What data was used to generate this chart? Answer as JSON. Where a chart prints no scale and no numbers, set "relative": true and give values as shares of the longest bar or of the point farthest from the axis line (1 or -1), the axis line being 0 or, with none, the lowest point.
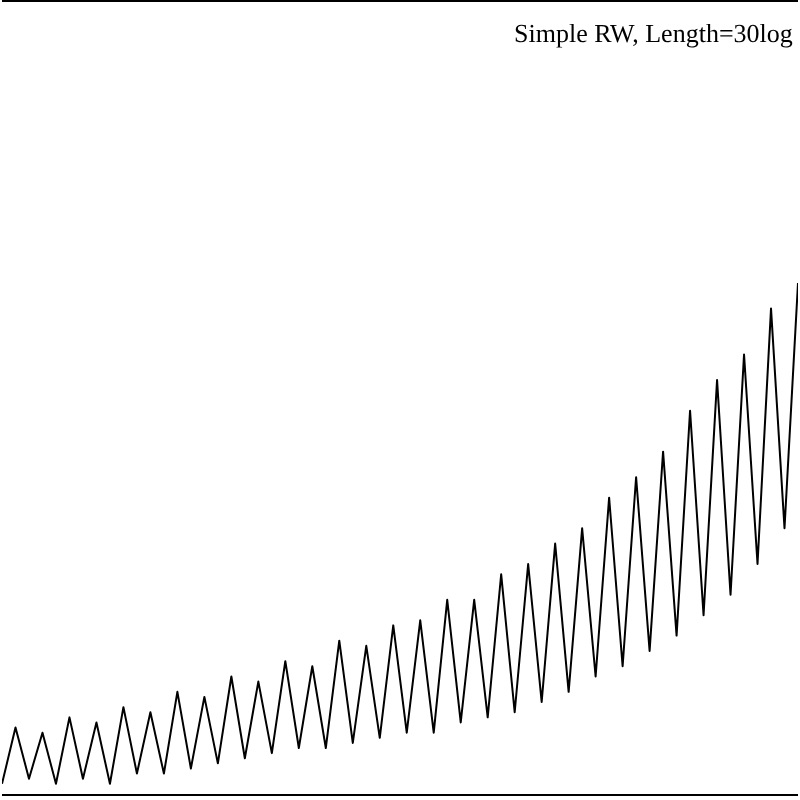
{
  "chart_data": {
    "type": "line",
    "relative": true,
    "annotations": [
      "Simple RW, Length=30log"
    ],
    "categories": [
      null,
      null,
      null,
      null,
      null,
      null,
      null,
      null,
      null,
      null,
      null,
      null,
      null,
      null,
      null,
      null,
      null,
      null,
      null,
      null,
      null,
      null,
      null,
      null,
      null,
      null,
      null,
      null,
      null,
      null,
      null,
      null,
      null,
      null,
      null,
      null,
      null,
      null,
      null,
      null,
      null,
      null,
      null,
      null,
      null,
      null,
      null,
      null,
      null,
      null,
      null,
      null,
      null,
      null,
      null,
      null,
      null,
      null,
      null,
      null
    ],
    "series": [
      {
        "color": "#000000",
        "values": [
          0.02,
          0.13,
          0.03,
          0.12,
          0.02,
          0.15,
          0.03,
          0.14,
          0.02,
          0.17,
          0.04,
          0.16,
          0.04,
          0.2,
          0.05,
          0.19,
          0.06,
          0.23,
          0.07,
          0.22,
          0.08,
          0.26,
          0.09,
          0.25,
          0.09,
          0.3,
          0.1,
          0.29,
          0.11,
          0.33,
          0.12,
          0.34,
          0.12,
          0.38,
          0.14,
          0.38,
          0.15,
          0.43,
          0.16,
          0.45,
          0.18,
          0.49,
          0.2,
          0.52,
          0.23,
          0.58,
          0.25,
          0.62,
          0.28,
          0.67,
          0.31,
          0.75,
          0.35,
          0.81,
          0.39,
          0.86,
          0.45,
          0.95,
          0.52,
          1.0
        ]
      }
    ],
    "marker": "none",
    "line_style": "solid"
  }
}
